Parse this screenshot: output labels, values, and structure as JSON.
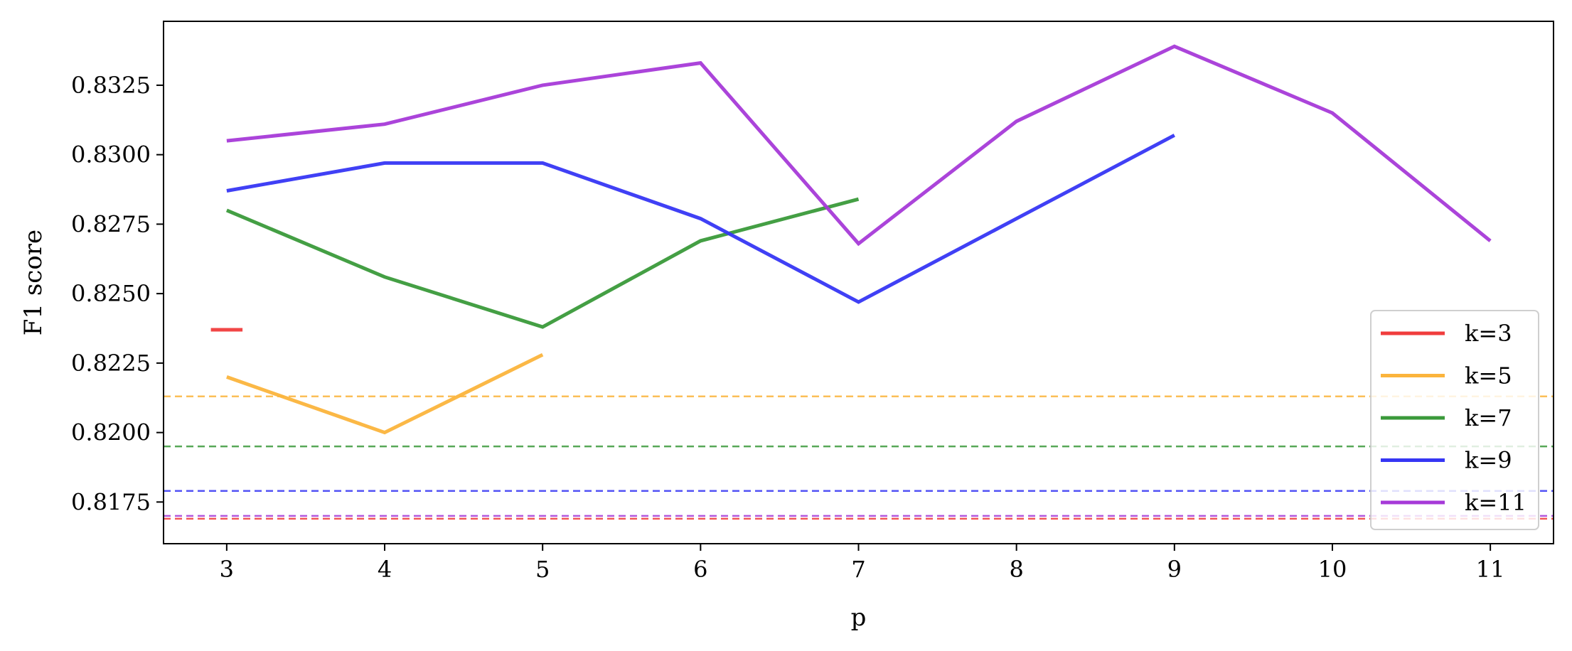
{
  "chart_data": {
    "type": "line",
    "title": "",
    "xlabel": "p",
    "ylabel": "F1 score",
    "xlim": [
      2.6,
      11.4
    ],
    "ylim": [
      0.816,
      0.8348
    ],
    "x_ticks": [
      "3",
      "4",
      "5",
      "6",
      "7",
      "8",
      "9",
      "10",
      "11"
    ],
    "y_ticks": [
      "0.8175",
      "0.8200",
      "0.8225",
      "0.8250",
      "0.8275",
      "0.8300",
      "0.8325"
    ],
    "grid": false,
    "legend_position": "lower right",
    "series": [
      {
        "name": "k=3",
        "color": "#f03c3c",
        "x": [
          2.9,
          3.1
        ],
        "y": [
          0.8237,
          0.8237
        ],
        "baseline": 0.8169
      },
      {
        "name": "k=5",
        "color": "#fbb43c",
        "x": [
          3,
          4,
          5
        ],
        "y": [
          0.822,
          0.82,
          0.8228
        ],
        "baseline": 0.8213
      },
      {
        "name": "k=7",
        "color": "#3a9a3a",
        "x": [
          3,
          4,
          5,
          6,
          7
        ],
        "y": [
          0.828,
          0.8256,
          0.8238,
          0.8269,
          0.8284
        ],
        "baseline": 0.8195
      },
      {
        "name": "k=9",
        "color": "#3636f4",
        "x": [
          3,
          4,
          5,
          6,
          7,
          8,
          9
        ],
        "y": [
          0.8287,
          0.8297,
          0.8297,
          0.8277,
          0.8247,
          0.8277,
          0.8307
        ],
        "baseline": 0.8179
      },
      {
        "name": "k=11",
        "color": "#a63ad8",
        "x": [
          3,
          4,
          5,
          6,
          7,
          8,
          9,
          10,
          11
        ],
        "y": [
          0.8305,
          0.8311,
          0.8325,
          0.8333,
          0.8268,
          0.8312,
          0.8339,
          0.8315,
          0.8269
        ],
        "baseline": 0.817
      }
    ]
  }
}
